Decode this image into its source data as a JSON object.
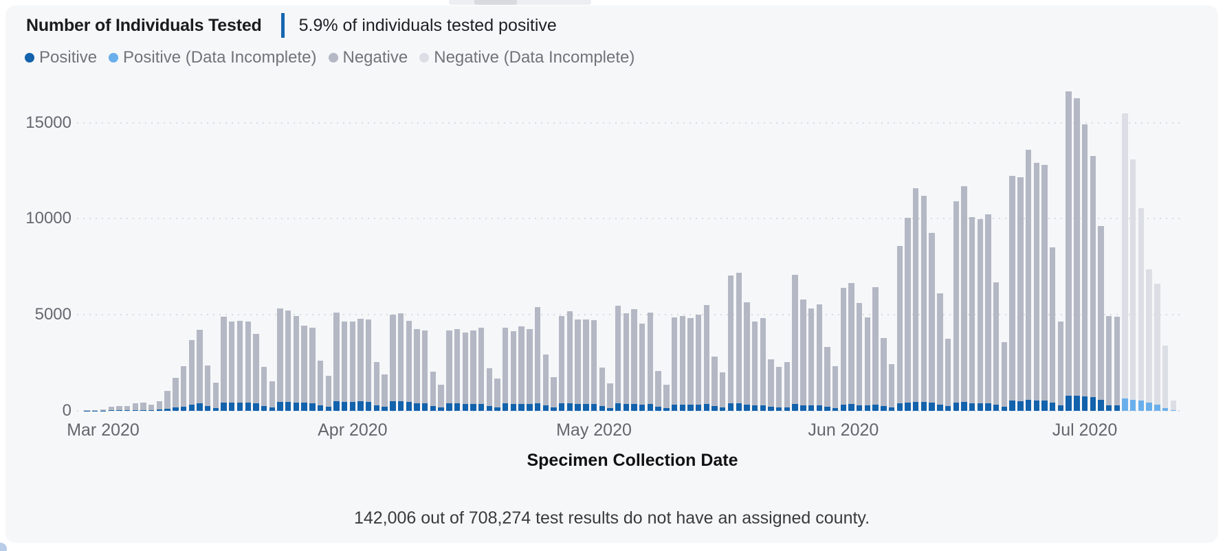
{
  "header": {
    "title": "Number of Individuals Tested",
    "subtitle": "5.9% of individuals tested positive",
    "divider_color": "#1766AF"
  },
  "legend": {
    "items": [
      {
        "label": "Positive",
        "color": "#1262AC"
      },
      {
        "label": "Positive (Data Incomplete)",
        "color": "#6AAFEC"
      },
      {
        "label": "Negative",
        "color": "#B4B8C4"
      },
      {
        "label": "Negative (Data Incomplete)",
        "color": "#DBDEE5"
      }
    ]
  },
  "footer": {
    "note": "142,006 out of 708,274 test results do not have an assigned county."
  },
  "chart_data": {
    "type": "bar",
    "stacked": true,
    "title": "Number of Individuals Tested",
    "xlabel": "Specimen Collection Date",
    "ylabel": "",
    "ylim": [
      0,
      17000
    ],
    "y_ticks": [
      0,
      5000,
      10000,
      15000
    ],
    "grid": "dotted-horizontal",
    "legend_position": "top-left",
    "colors": {
      "positive": "#1262AC",
      "positive_incomplete": "#6AAFEC",
      "negative": "#B4B8C4",
      "negative_incomplete": "#DBDEE5"
    },
    "incomplete_start_index": 129,
    "month_labels": [
      {
        "label": "Mar 2020",
        "index": 2
      },
      {
        "label": "Apr 2020",
        "index": 33
      },
      {
        "label": "May 2020",
        "index": 63
      },
      {
        "label": "Jun 2020",
        "index": 94
      },
      {
        "label": "Jul 2020",
        "index": 124
      }
    ],
    "dates": [
      "Feb 28",
      "Feb 29",
      "Mar 1",
      "Mar 2",
      "Mar 3",
      "Mar 4",
      "Mar 5",
      "Mar 6",
      "Mar 7",
      "Mar 8",
      "Mar 9",
      "Mar 10",
      "Mar 11",
      "Mar 12",
      "Mar 13",
      "Mar 14",
      "Mar 15",
      "Mar 16",
      "Mar 17",
      "Mar 18",
      "Mar 19",
      "Mar 20",
      "Mar 21",
      "Mar 22",
      "Mar 23",
      "Mar 24",
      "Mar 25",
      "Mar 26",
      "Mar 27",
      "Mar 28",
      "Mar 29",
      "Mar 30",
      "Mar 31",
      "Apr 1",
      "Apr 2",
      "Apr 3",
      "Apr 4",
      "Apr 5",
      "Apr 6",
      "Apr 7",
      "Apr 8",
      "Apr 9",
      "Apr 10",
      "Apr 11",
      "Apr 12",
      "Apr 13",
      "Apr 14",
      "Apr 15",
      "Apr 16",
      "Apr 17",
      "Apr 18",
      "Apr 19",
      "Apr 20",
      "Apr 21",
      "Apr 22",
      "Apr 23",
      "Apr 24",
      "Apr 25",
      "Apr 26",
      "Apr 27",
      "Apr 28",
      "Apr 29",
      "Apr 30",
      "May 1",
      "May 2",
      "May 3",
      "May 4",
      "May 5",
      "May 6",
      "May 7",
      "May 8",
      "May 9",
      "May 10",
      "May 11",
      "May 12",
      "May 13",
      "May 14",
      "May 15",
      "May 16",
      "May 17",
      "May 18",
      "May 19",
      "May 20",
      "May 21",
      "May 22",
      "May 23",
      "May 24",
      "May 25",
      "May 26",
      "May 27",
      "May 28",
      "May 29",
      "May 30",
      "May 31",
      "Jun 1",
      "Jun 2",
      "Jun 3",
      "Jun 4",
      "Jun 5",
      "Jun 6",
      "Jun 7",
      "Jun 8",
      "Jun 9",
      "Jun 10",
      "Jun 11",
      "Jun 12",
      "Jun 13",
      "Jun 14",
      "Jun 15",
      "Jun 16",
      "Jun 17",
      "Jun 18",
      "Jun 19",
      "Jun 20",
      "Jun 21",
      "Jun 22",
      "Jun 23",
      "Jun 24",
      "Jun 25",
      "Jun 26",
      "Jun 27",
      "Jun 28",
      "Jun 29",
      "Jun 30",
      "Jul 1",
      "Jul 2",
      "Jul 3",
      "Jul 4",
      "Jul 5",
      "Jul 6",
      "Jul 7",
      "Jul 8",
      "Jul 9",
      "Jul 10",
      "Jul 11",
      "Jul 12"
    ],
    "series": [
      {
        "name": "Positive",
        "values": [
          5,
          8,
          10,
          25,
          30,
          28,
          42,
          46,
          38,
          55,
          110,
          175,
          230,
          335,
          385,
          240,
          160,
          440,
          430,
          430,
          420,
          400,
          260,
          180,
          480,
          460,
          440,
          420,
          400,
          280,
          200,
          500,
          460,
          480,
          490,
          470,
          300,
          220,
          500,
          490,
          450,
          405,
          380,
          250,
          170,
          400,
          390,
          370,
          365,
          360,
          250,
          195,
          380,
          350,
          355,
          345,
          400,
          280,
          190,
          380,
          390,
          360,
          355,
          350,
          240,
          150,
          380,
          350,
          355,
          320,
          340,
          210,
          140,
          330,
          330,
          320,
          330,
          350,
          240,
          170,
          380,
          390,
          330,
          290,
          300,
          200,
          170,
          190,
          350,
          300,
          290,
          300,
          220,
          160,
          330,
          340,
          300,
          280,
          330,
          240,
          170,
          400,
          440,
          470,
          450,
          420,
          330,
          240,
          430,
          450,
          400,
          390,
          400,
          320,
          220,
          520,
          510,
          560,
          540,
          530,
          420,
          280,
          800,
          780,
          750,
          700,
          560,
          300,
          290,
          640,
          580,
          520,
          430,
          330,
          150,
          40
        ]
      },
      {
        "name": "Negative",
        "values": [
          25,
          37,
          50,
          190,
          230,
          212,
          338,
          374,
          297,
          445,
          915,
          1555,
          2085,
          3345,
          3825,
          2110,
          1320,
          4460,
          4220,
          4270,
          4230,
          3600,
          2040,
          1370,
          4860,
          4770,
          4510,
          4030,
          3930,
          2320,
          1630,
          4600,
          4200,
          4180,
          4310,
          4280,
          2250,
          1670,
          4520,
          4580,
          4240,
          3835,
          3810,
          1800,
          1190,
          3790,
          3850,
          3700,
          3825,
          3970,
          1960,
          1495,
          3950,
          3800,
          4035,
          3925,
          5000,
          2670,
          1560,
          4550,
          4800,
          4410,
          4415,
          4360,
          2030,
          1270,
          5110,
          4720,
          4955,
          4230,
          4790,
          1880,
          1220,
          4540,
          4600,
          4510,
          4690,
          5170,
          2600,
          1820,
          6650,
          6800,
          5330,
          4370,
          4530,
          2470,
          2120,
          2360,
          6720,
          5500,
          5030,
          5240,
          3100,
          2150,
          6080,
          6310,
          5320,
          4590,
          6120,
          3560,
          2280,
          8180,
          9600,
          11120,
          10750,
          8850,
          5790,
          3520,
          10470,
          11260,
          9700,
          9590,
          9820,
          6360,
          3360,
          11730,
          11640,
          13040,
          12360,
          12270,
          8080,
          4370,
          15850,
          15510,
          14170,
          12580,
          9070,
          4630,
          4610,
          14860,
          12520,
          10030,
          6940,
          6270,
          3250,
          510
        ]
      }
    ]
  }
}
